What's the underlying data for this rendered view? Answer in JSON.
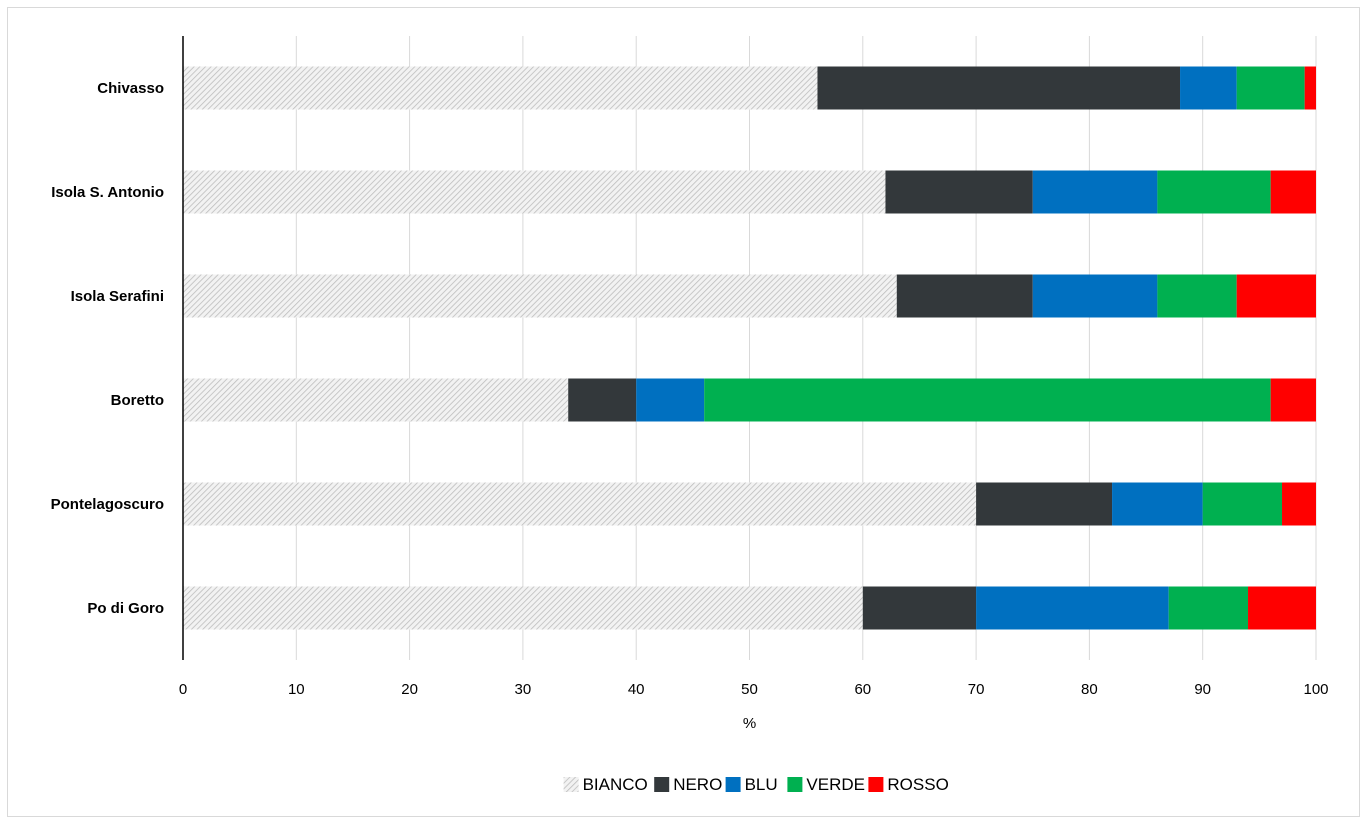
{
  "chart_data": {
    "type": "bar",
    "orientation": "horizontal",
    "stacked": true,
    "categories": [
      "Chivasso",
      "Isola S. Antonio",
      "Isola Serafini",
      "Boretto",
      "Pontelagoscuro",
      "Po di Goro"
    ],
    "series": [
      {
        "name": "BIANCO",
        "color": "#d0d0d0",
        "pattern": "hatch",
        "values": [
          56,
          62,
          63,
          34,
          70,
          60
        ]
      },
      {
        "name": "NERO",
        "color": "#33383b",
        "values": [
          32,
          13,
          12,
          6,
          12,
          10
        ]
      },
      {
        "name": "BLU",
        "color": "#0070c0",
        "values": [
          5,
          11,
          11,
          6,
          8,
          17
        ]
      },
      {
        "name": "VERDE",
        "color": "#00b050",
        "values": [
          6,
          10,
          7,
          50,
          7,
          7
        ]
      },
      {
        "name": "ROSSO",
        "color": "#ff0000",
        "values": [
          1,
          4,
          7,
          4,
          3,
          6
        ]
      }
    ],
    "xlabel": "%",
    "ylabel": "",
    "xlim": [
      0,
      100
    ],
    "xticks": [
      "0",
      "10",
      "20",
      "30",
      "40",
      "50",
      "60",
      "70",
      "80",
      "90",
      "100"
    ],
    "grid": "vertical",
    "legend_position": "bottom"
  }
}
